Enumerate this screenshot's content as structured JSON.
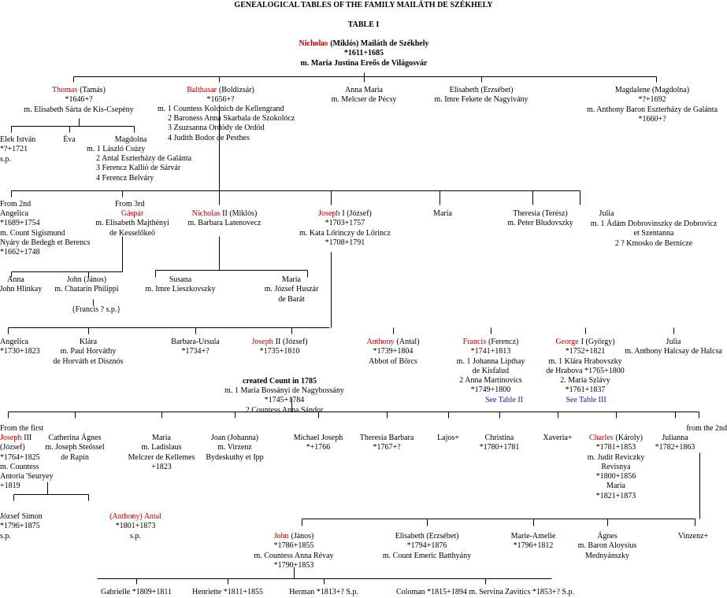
{
  "title": "GENEALOGICAL TABLES OF THE FAMILY MAILÁTH DE SZÉKHELY",
  "table_label": "TABLE I",
  "blocks": [
    {
      "name": "Nicholas",
      "after": "(Miklós) Mailáth de Székhely",
      "lines": [
        "*1611+1685",
        "m. Maria Justina Ereős de Világosvár"
      ]
    },
    {
      "name": "Thomas",
      "after": "(Tamás)",
      "lines": [
        "*1646+?",
        "m. Elisabeth Sárta de Kis-Csepény"
      ]
    },
    {
      "name": "Balthasar",
      "after": "(Boldizsár)",
      "lines": [
        "*1656+?"
      ]
    },
    {
      "lines": [
        "m. 1 Countess Kolonich de Kellengrand"
      ]
    },
    {
      "lines": [
        "2 Baroness Anna Skarbala de Szokolócz",
        "3 Zsuzsanna Ordódy de Ordód",
        "4 Judith Bodor de Pesthes"
      ]
    },
    {
      "lines": [
        "Anna Maria",
        "m. Melcser de Pécsy"
      ]
    },
    {
      "lines": [
        "Elisabeth (Erzsébet)",
        "m. Imre Fekete de Nagyivány"
      ]
    },
    {
      "lines": [
        "Magdalene (Magdolna)",
        "*?+1692",
        "m. Anthony Baron Eszterházy de Galánta",
        "*1660+?"
      ]
    },
    {
      "lines": [
        "Elek István",
        "*?+1721",
        "s.p."
      ]
    },
    {
      "lines": [
        "Éva"
      ]
    },
    {
      "lines": [
        "Magdolna"
      ]
    },
    {
      "lines": [
        "m. 1 László Csúzy"
      ]
    },
    {
      "lines": [
        "2 Antal Eszterházy de Galánta",
        "3 Ferencz Kalliό de Sárvár",
        "4 Ferencz Belváry"
      ]
    },
    {
      "lines": [
        "From 2nd"
      ]
    },
    {
      "lines": [
        "From 3rd"
      ]
    },
    {
      "lines": [
        "Angelica",
        "*1689+1754",
        "m. Count Sigismund",
        "Nyáry de Bedegh et Berencs",
        "*1662+1748"
      ]
    },
    {
      "name": "Gáspár",
      "lines": [
        "m. Elisabeth Majthényi",
        "de Kesselőkeő"
      ]
    },
    {
      "name": "Nicholas",
      "after": "II (Miklós)",
      "lines": [
        "m. Barbara Latenovecz"
      ]
    },
    {
      "name": "Joseph",
      "after": "I (József)",
      "lines": [
        "*1703+1757",
        "m. Kata Lőrinczy de Lőrincz",
        "*1708+1791"
      ]
    },
    {
      "lines": [
        "Maria"
      ]
    },
    {
      "lines": [
        "Theresia (Terész)",
        "m. Peter Bludovszky"
      ]
    },
    {
      "lines": [
        "Julia"
      ]
    },
    {
      "lines": [
        "m. 1 Ádám Dobrovinszky de Dobrovicz",
        "et Szentanna",
        "2 ? Kmosko de Bernicze"
      ]
    },
    {
      "lines": [
        "Anna",
        "m. John  Hlinkay"
      ]
    },
    {
      "lines": [
        "John (János)",
        "m. Chatarin Philippi"
      ]
    },
    {
      "lines": [
        "{Francis ? s.p.}"
      ]
    },
    {
      "lines": [
        "Susana",
        "m. Imre Lieszkovszky"
      ]
    },
    {
      "lines": [
        "Maria",
        "m. József Huszár",
        "de Barát"
      ]
    },
    {
      "lines": [
        "Angelica",
        "*1730+1823"
      ]
    },
    {
      "lines": [
        "Klára",
        "m. Paul Horváthy",
        "de Horváth et Disznós"
      ]
    },
    {
      "lines": [
        "Barbara-Ursula",
        "*1734+?"
      ]
    },
    {
      "name": "Joseph",
      "after": "II (József)",
      "lines": [
        "*1735+1810"
      ]
    },
    {
      "lines": [
        "created Count  in 1785"
      ]
    },
    {
      "lines": [
        "m. 1 Maria Bossányi de Nagybossány",
        "*1745+1784",
        "2 Countess Anna Sándor"
      ]
    },
    {
      "name": "Anthony",
      "after": "(Antal)",
      "lines": [
        "*1739+1804",
        "Abbot of Bőrcs"
      ]
    },
    {
      "name": "Francis",
      "after": "(Ferencz)",
      "lines": [
        "*1741+1813",
        "m. 1 Johanna Lipthay",
        "de Kisfalud",
        "2 Anna Martinovics",
        "*1749+1800"
      ]
    },
    {
      "lines": [
        "See Table II"
      ]
    },
    {
      "name": "George",
      "after": "I (György)",
      "lines": [
        "*1752+1821",
        "m. 1 Klára Hrabovszky",
        "de Hrabova *1765+1800",
        "2. Maria Szlávy",
        "*1761+1837"
      ]
    },
    {
      "lines": [
        "See Table III"
      ]
    },
    {
      "lines": [
        "Julia",
        "m. Anthony Halcsay de Halcsa"
      ]
    },
    {
      "lines": [
        "From the first"
      ]
    },
    {
      "lines": [
        "from the 2nd"
      ]
    },
    {
      "name": "Joseph",
      "after": "III",
      "lines": [
        "(József)",
        "*1764+1825",
        "m. Countess",
        "Antoria 'Seuryey",
        "+1819"
      ]
    },
    {
      "lines": [
        "Catherina  Ágnes",
        "m. Joseph Steőssel",
        "de Rapin"
      ]
    },
    {
      "lines": [
        "Maria",
        "m. Ladislaus",
        "Melczer de Kellemes",
        "+1823"
      ]
    },
    {
      "lines": [
        "Joan (Johanna)",
        "m. Virzenz",
        "Bydeskuthy et Ipp"
      ]
    },
    {
      "lines": [
        "Michael Joseph",
        "*+1766"
      ]
    },
    {
      "lines": [
        "Theresia Barbara",
        "*1767+?"
      ]
    },
    {
      "lines": [
        "Lajos+"
      ]
    },
    {
      "lines": [
        "Christina",
        "*1780+1781"
      ]
    },
    {
      "lines": [
        "Xaveria+"
      ]
    },
    {
      "name": "Charles",
      "after": "(Károly)",
      "lines": [
        "*1781+1853",
        "m. Judit Reviczky",
        "Revisnya",
        "*1800+1856",
        "Maria",
        "*1821+1873"
      ]
    },
    {
      "lines": [
        "Julianna",
        "*1782+1863"
      ]
    },
    {
      "lines": [
        "József Simon",
        "*1796+1875",
        "s.p."
      ]
    },
    {
      "name": "(Anthony)  Antal",
      "lines": [
        "*1801+1873",
        "s.p."
      ]
    },
    {
      "name": "John",
      "after": "(János)",
      "lines": [
        "*1786+1855",
        "m. Countess Anna Révay",
        "*1790+1853"
      ]
    },
    {
      "lines": [
        "Elisabeth (Erzsébet)",
        "*1794+1876",
        "m. Count Emeric Batthyány"
      ]
    },
    {
      "lines": [
        "Marie-Amelie",
        "*1796+1812"
      ]
    },
    {
      "lines": [
        "Ágnes",
        "m. Baron Aloysius",
        "Mednyánszky"
      ]
    },
    {
      "lines": [
        "Vinzenz+"
      ]
    },
    {
      "lines": [
        "Gabrielle *1809+1811"
      ]
    },
    {
      "lines": [
        "Henriette *1811+1855"
      ]
    },
    {
      "lines": [
        "Herman *1813+?  S.p."
      ]
    },
    {
      "lines": [
        "Coloman *1815+1894 m. Servina Zavitics *1853+? S.p."
      ]
    }
  ]
}
